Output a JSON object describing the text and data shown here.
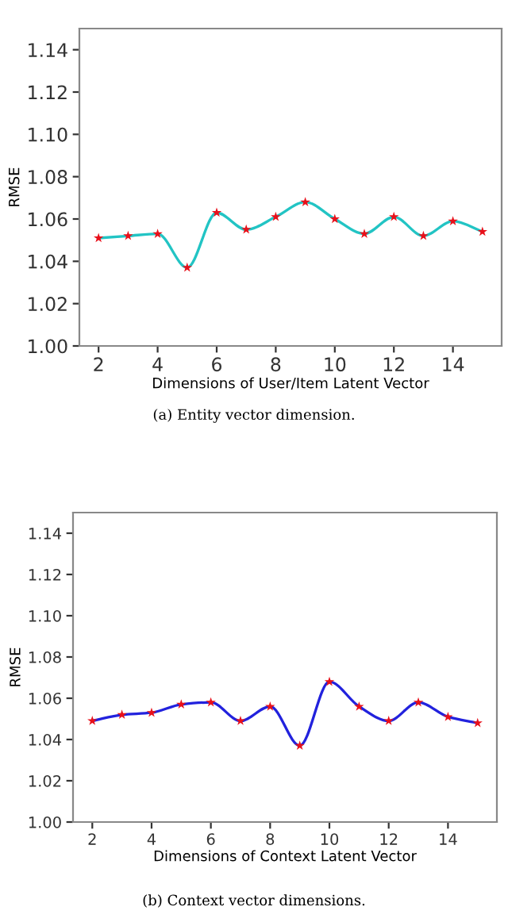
{
  "chart_data": [
    {
      "type": "line",
      "xlabel": "Dimensions of User/Item Latent Vector",
      "ylabel": "RMSE",
      "x": [
        2,
        3,
        4,
        5,
        6,
        7,
        8,
        9,
        10,
        11,
        12,
        13,
        14,
        15
      ],
      "series": [
        {
          "color": "#22c4c4",
          "marker": "none",
          "values": [
            1.051,
            1.052,
            1.053,
            1.037,
            1.063,
            1.055,
            1.061,
            1.068,
            1.06,
            1.053,
            1.061,
            1.052,
            1.059,
            1.054
          ]
        },
        {
          "type": "scatter",
          "color": "#e8101a",
          "marker": "star",
          "values": [
            1.051,
            1.052,
            1.053,
            1.037,
            1.063,
            1.055,
            1.061,
            1.068,
            1.06,
            1.053,
            1.061,
            1.052,
            1.059,
            1.054
          ]
        }
      ],
      "xlim": [
        1.35,
        15.65
      ],
      "xticks": [
        2,
        4,
        6,
        8,
        10,
        12,
        14
      ],
      "ylim": [
        1.0,
        1.15
      ],
      "yticks": [
        {
          "value": 1.0,
          "label": "1.00"
        },
        {
          "value": 1.02,
          "label": "1.02"
        },
        {
          "value": 1.04,
          "label": "1.04"
        },
        {
          "value": 1.06,
          "label": "1.06"
        },
        {
          "value": 1.08,
          "label": "1.08"
        },
        {
          "value": 1.1,
          "label": "1.10"
        },
        {
          "value": 1.12,
          "label": "1.12"
        },
        {
          "value": 1.14,
          "label": "1.14"
        }
      ],
      "annotations": [
        "(a) Entity vector dimension."
      ]
    },
    {
      "type": "line",
      "xlabel": "Dimensions of Context Latent Vector",
      "ylabel": "RMSE",
      "x": [
        2,
        3,
        4,
        5,
        6,
        7,
        8,
        9,
        10,
        11,
        12,
        13,
        14,
        15
      ],
      "series": [
        {
          "color": "#2222dd",
          "marker": "none",
          "values": [
            1.049,
            1.052,
            1.053,
            1.057,
            1.058,
            1.049,
            1.056,
            1.037,
            1.068,
            1.056,
            1.049,
            1.058,
            1.051,
            1.048
          ]
        },
        {
          "type": "scatter",
          "color": "#e8101a",
          "marker": "star",
          "values": [
            1.049,
            1.052,
            1.053,
            1.057,
            1.058,
            1.049,
            1.056,
            1.037,
            1.068,
            1.056,
            1.049,
            1.058,
            1.051,
            1.048
          ]
        }
      ],
      "xlim": [
        1.35,
        15.65
      ],
      "xticks": [
        2,
        4,
        6,
        8,
        10,
        12,
        14
      ],
      "ylim": [
        1.0,
        1.15
      ],
      "yticks": [
        {
          "value": 1.0,
          "label": "1.00"
        },
        {
          "value": 1.02,
          "label": "1.02"
        },
        {
          "value": 1.04,
          "label": "1.04"
        },
        {
          "value": 1.06,
          "label": "1.06"
        },
        {
          "value": 1.08,
          "label": "1.08"
        },
        {
          "value": 1.1,
          "label": "1.10"
        },
        {
          "value": 1.12,
          "label": "1.12"
        },
        {
          "value": 1.14,
          "label": "1.14"
        }
      ],
      "annotations": [
        "(b) Context vector dimensions."
      ]
    }
  ]
}
